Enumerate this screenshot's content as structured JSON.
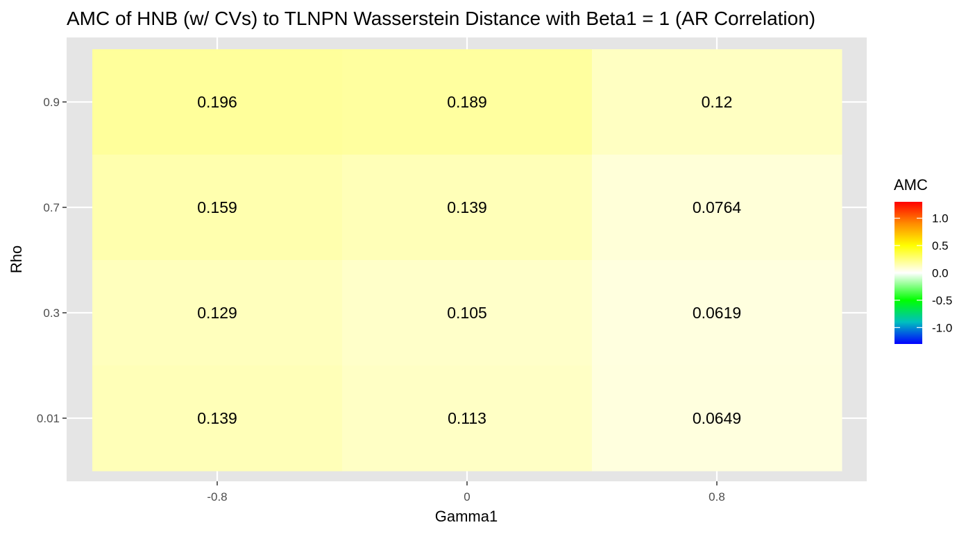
{
  "chart_data": {
    "type": "heatmap",
    "title": "AMC of HNB (w/ CVs) to TLNPN Wasserstein Distance with Beta1 = 1 (AR Correlation)",
    "xlabel": "Gamma1",
    "ylabel": "Rho",
    "x_categories": [
      "-0.8",
      "0",
      "0.8"
    ],
    "y_categories": [
      "0.01",
      "0.3",
      "0.7",
      "0.9"
    ],
    "cells": [
      {
        "x": "-0.8",
        "y": "0.9",
        "value": 0.196,
        "label": "0.196"
      },
      {
        "x": "0",
        "y": "0.9",
        "value": 0.189,
        "label": "0.189"
      },
      {
        "x": "0.8",
        "y": "0.9",
        "value": 0.12,
        "label": "0.12"
      },
      {
        "x": "-0.8",
        "y": "0.7",
        "value": 0.159,
        "label": "0.159"
      },
      {
        "x": "0",
        "y": "0.7",
        "value": 0.139,
        "label": "0.139"
      },
      {
        "x": "0.8",
        "y": "0.7",
        "value": 0.0764,
        "label": "0.0764"
      },
      {
        "x": "-0.8",
        "y": "0.3",
        "value": 0.129,
        "label": "0.129"
      },
      {
        "x": "0",
        "y": "0.3",
        "value": 0.105,
        "label": "0.105"
      },
      {
        "x": "0.8",
        "y": "0.3",
        "value": 0.0619,
        "label": "0.0619"
      },
      {
        "x": "-0.8",
        "y": "0.01",
        "value": 0.139,
        "label": "0.139"
      },
      {
        "x": "0",
        "y": "0.01",
        "value": 0.113,
        "label": "0.113"
      },
      {
        "x": "0.8",
        "y": "0.01",
        "value": 0.0649,
        "label": "0.0649"
      }
    ],
    "legend": {
      "title": "AMC",
      "placement": "right",
      "range": [
        -1.3,
        1.3
      ],
      "ticks": [
        1.0,
        0.5,
        0.0,
        -0.5,
        -1.0
      ],
      "tick_labels": [
        "1.0",
        "0.5",
        "0.0",
        "-0.5",
        "-1.0"
      ],
      "color_stops": [
        {
          "value": 1.3,
          "color": "#ff0000"
        },
        {
          "value": 0.9,
          "color": "#ff8c00"
        },
        {
          "value": 0.5,
          "color": "#ffff00"
        },
        {
          "value": 0.0,
          "color": "#ffffff"
        },
        {
          "value": -0.5,
          "color": "#00ff00"
        },
        {
          "value": -0.9,
          "color": "#00bfbf"
        },
        {
          "value": -1.3,
          "color": "#0000ff"
        }
      ]
    },
    "panel_background": "#e5e5e5",
    "grid_color": "#ffffff",
    "grid": true
  }
}
